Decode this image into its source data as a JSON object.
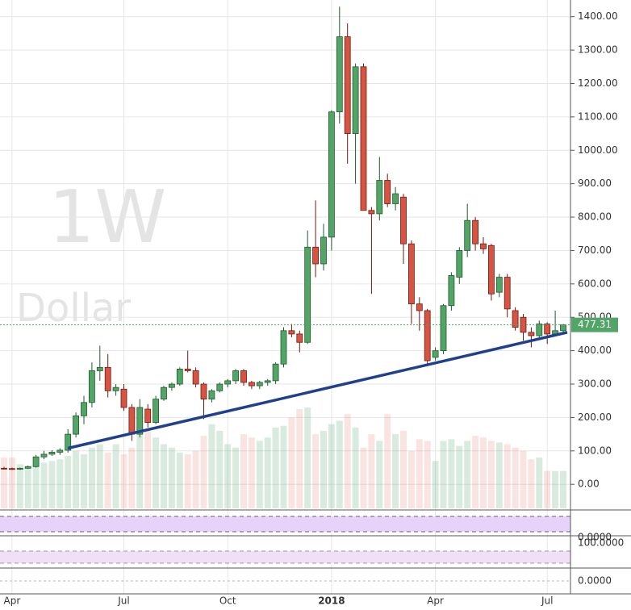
{
  "chart_data": {
    "type": "candlestick",
    "watermark": {
      "interval": "1W",
      "currency": "Dollar"
    },
    "categories": [
      null,
      "Apr",
      null,
      null,
      null,
      null,
      null,
      null,
      null,
      null,
      null,
      null,
      null,
      null,
      null,
      "Jul",
      null,
      null,
      null,
      null,
      null,
      null,
      null,
      null,
      null,
      null,
      null,
      null,
      "Oct",
      null,
      null,
      null,
      null,
      null,
      null,
      null,
      null,
      null,
      null,
      null,
      null,
      "2018",
      null,
      null,
      null,
      null,
      null,
      null,
      null,
      null,
      null,
      null,
      null,
      null,
      "Apr",
      null,
      null,
      null,
      null,
      null,
      null,
      null,
      null,
      null,
      null,
      null,
      null,
      null,
      "Jul",
      null,
      null
    ],
    "open": [
      48,
      47,
      45,
      48,
      53,
      82,
      90,
      96,
      102,
      150,
      205,
      245,
      340,
      350,
      280,
      285,
      230,
      150,
      225,
      185,
      255,
      290,
      300,
      345,
      340,
      300,
      255,
      280,
      300,
      310,
      340,
      305,
      295,
      305,
      310,
      360,
      460,
      450,
      425,
      710,
      660,
      740,
      1115,
      1340,
      1050,
      1250,
      820,
      810,
      910,
      840,
      860,
      720,
      540,
      520,
      380,
      400,
      535,
      620,
      700,
      790,
      720,
      715,
      575,
      620,
      520,
      500,
      455,
      445,
      480,
      450,
      460
    ],
    "high": [
      52,
      50,
      50,
      56,
      88,
      100,
      102,
      108,
      165,
      215,
      265,
      365,
      415,
      390,
      300,
      300,
      240,
      255,
      240,
      265,
      295,
      305,
      350,
      400,
      350,
      305,
      285,
      305,
      315,
      345,
      345,
      310,
      310,
      315,
      365,
      470,
      480,
      460,
      760,
      850,
      780,
      1120,
      1430,
      1380,
      1260,
      1260,
      830,
      980,
      930,
      890,
      870,
      730,
      560,
      525,
      410,
      540,
      635,
      710,
      840,
      800,
      740,
      720,
      630,
      630,
      530,
      510,
      470,
      490,
      485,
      520,
      480
    ],
    "low": [
      44,
      43,
      43,
      46,
      50,
      75,
      85,
      88,
      95,
      140,
      180,
      230,
      310,
      260,
      265,
      220,
      130,
      140,
      170,
      180,
      250,
      280,
      295,
      335,
      290,
      195,
      245,
      275,
      290,
      300,
      295,
      285,
      285,
      295,
      300,
      350,
      440,
      395,
      420,
      620,
      640,
      700,
      1080,
      960,
      900,
      820,
      570,
      790,
      830,
      820,
      660,
      480,
      460,
      360,
      370,
      390,
      520,
      600,
      680,
      700,
      690,
      550,
      560,
      500,
      460,
      430,
      410,
      440,
      420,
      445,
      450
    ],
    "close": [
      47,
      45,
      48,
      53,
      82,
      90,
      96,
      102,
      150,
      205,
      245,
      340,
      350,
      280,
      290,
      230,
      150,
      230,
      185,
      255,
      290,
      300,
      345,
      340,
      300,
      255,
      280,
      300,
      310,
      340,
      305,
      295,
      305,
      310,
      360,
      460,
      450,
      425,
      710,
      660,
      740,
      1115,
      1340,
      1050,
      1250,
      820,
      810,
      910,
      840,
      870,
      720,
      540,
      520,
      370,
      400,
      535,
      625,
      700,
      790,
      720,
      705,
      570,
      620,
      525,
      470,
      455,
      445,
      480,
      450,
      460,
      477.31
    ],
    "volume": [
      80,
      80,
      60,
      50,
      60,
      65,
      70,
      75,
      85,
      100,
      90,
      110,
      120,
      95,
      120,
      90,
      110,
      170,
      160,
      140,
      120,
      110,
      95,
      90,
      100,
      145,
      180,
      160,
      120,
      110,
      150,
      140,
      130,
      140,
      170,
      175,
      200,
      225,
      230,
      150,
      160,
      180,
      190,
      210,
      170,
      110,
      150,
      130,
      210,
      150,
      160,
      100,
      135,
      130,
      70,
      130,
      135,
      115,
      130,
      145,
      140,
      130,
      125,
      120,
      110,
      100,
      75,
      80,
      40,
      40,
      40
    ],
    "trendline": [
      {
        "index": 8,
        "value": 108
      },
      {
        "index": 70.5,
        "value": 455
      }
    ],
    "ylim": [
      -72,
      1450
    ],
    "yticks": [
      {
        "value": 0,
        "label": "0.00"
      },
      {
        "value": 100,
        "label": "100.00"
      },
      {
        "value": 200,
        "label": "200.00"
      },
      {
        "value": 300,
        "label": "300.00"
      },
      {
        "value": 400,
        "label": "400.00"
      },
      {
        "value": 500,
        "label": "500.00"
      },
      {
        "value": 600,
        "label": "600.00"
      },
      {
        "value": 700,
        "label": "700.00"
      },
      {
        "value": 800,
        "label": "800.00"
      },
      {
        "value": 900,
        "label": "900.00"
      },
      {
        "value": 1000,
        "label": "1000.00"
      },
      {
        "value": 1100,
        "label": "1100.00"
      },
      {
        "value": 1200,
        "label": "1200.00"
      },
      {
        "value": 1300,
        "label": "1300.00"
      },
      {
        "value": 1400,
        "label": "1400.00"
      }
    ],
    "indicator_labels": [
      "0.0000",
      "100.0000",
      "0.0000"
    ],
    "grid": true,
    "up_color": "#53a567",
    "down_color": "#d75442",
    "trendline_color": "#1f3f8f"
  }
}
